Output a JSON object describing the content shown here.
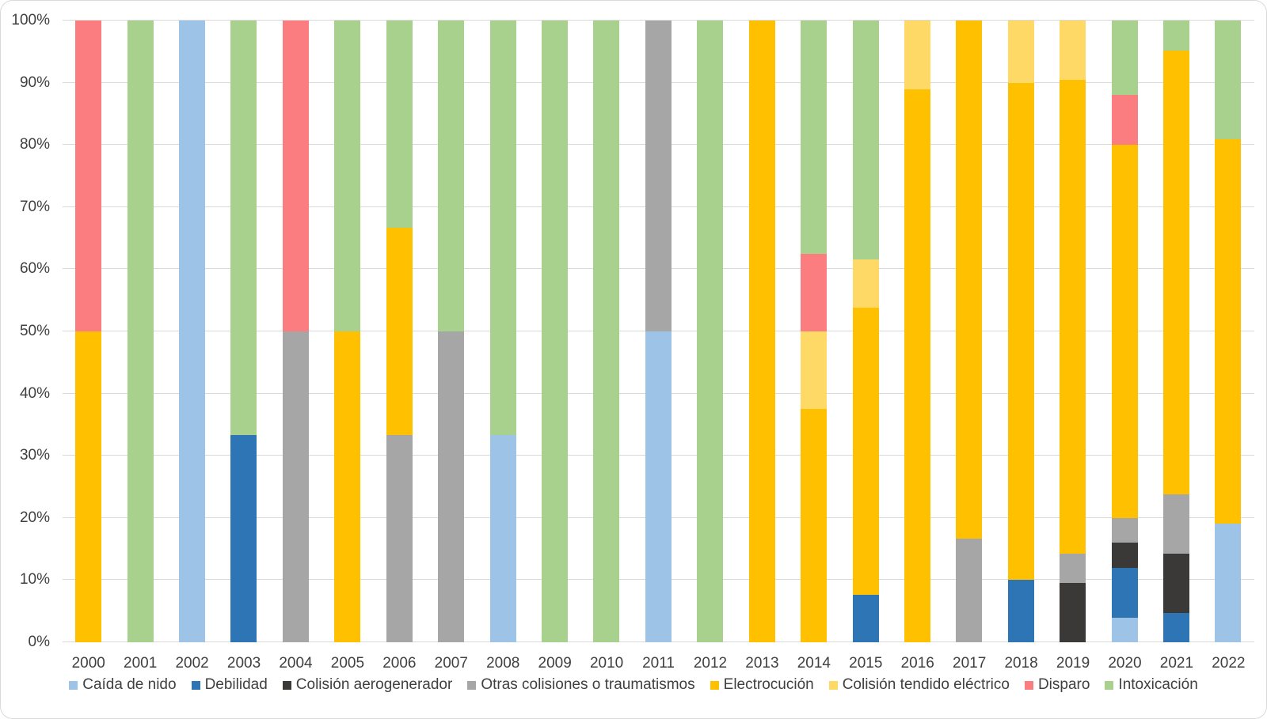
{
  "chart_data": {
    "type": "bar",
    "variant": "stacked-100-percent",
    "title": "",
    "xlabel": "",
    "ylabel": "",
    "ylim": [
      0,
      100
    ],
    "grid": true,
    "legend_position": "bottom",
    "y_ticks": [
      "0%",
      "10%",
      "20%",
      "30%",
      "40%",
      "50%",
      "60%",
      "70%",
      "80%",
      "90%",
      "100%"
    ],
    "categories": [
      "2000",
      "2001",
      "2002",
      "2003",
      "2004",
      "2005",
      "2006",
      "2007",
      "2008",
      "2009",
      "2010",
      "2011",
      "2012",
      "2013",
      "2014",
      "2015",
      "2016",
      "2017",
      "2018",
      "2019",
      "2020",
      "2021",
      "2022"
    ],
    "series": [
      {
        "name": "Caída de nido",
        "color": "#9DC3E6",
        "values": [
          0,
          0,
          100,
          0,
          0,
          0,
          0,
          0,
          33.33,
          0,
          0,
          50,
          0,
          0,
          0,
          0,
          0,
          0,
          0,
          0,
          4,
          0,
          19.05
        ]
      },
      {
        "name": "Debilidad",
        "color": "#2E75B6",
        "values": [
          0,
          0,
          0,
          33.33,
          0,
          0,
          0,
          0,
          0,
          0,
          0,
          0,
          0,
          0,
          0,
          7.69,
          0,
          0,
          10,
          0,
          8,
          4.76,
          0
        ]
      },
      {
        "name": "Colisión aerogenerador",
        "color": "#3B3838",
        "values": [
          0,
          0,
          0,
          0,
          0,
          0,
          0,
          0,
          0,
          0,
          0,
          0,
          0,
          0,
          0,
          0,
          0,
          0,
          0,
          9.52,
          4,
          9.52,
          0
        ]
      },
      {
        "name": "Otras colisiones o traumatismos",
        "color": "#A6A6A6",
        "values": [
          0,
          0,
          0,
          0,
          50,
          0,
          33.33,
          50,
          0,
          0,
          0,
          50,
          0,
          0,
          0,
          0,
          0,
          16.67,
          0,
          4.76,
          4,
          9.52,
          0
        ]
      },
      {
        "name": "Electrocución",
        "color": "#FFC000",
        "values": [
          50,
          0,
          0,
          0,
          0,
          50,
          33.34,
          0,
          0,
          0,
          0,
          0,
          0,
          100,
          37.5,
          46.15,
          88.89,
          83.33,
          80,
          76.19,
          60,
          71.43,
          61.9
        ]
      },
      {
        "name": "Colisión tendido eléctrico",
        "color": "#FFD966",
        "values": [
          0,
          0,
          0,
          0,
          0,
          0,
          0,
          0,
          0,
          0,
          0,
          0,
          0,
          0,
          12.5,
          7.69,
          11.11,
          0,
          10,
          9.53,
          0,
          0,
          0
        ]
      },
      {
        "name": "Disparo",
        "color": "#FB7D80",
        "values": [
          50,
          0,
          0,
          0,
          50,
          0,
          0,
          0,
          0,
          0,
          0,
          0,
          0,
          0,
          12.5,
          0,
          0,
          0,
          0,
          0,
          8,
          0,
          0
        ]
      },
      {
        "name": "Intoxicación",
        "color": "#A9D18E",
        "values": [
          0,
          100,
          0,
          66.67,
          0,
          50,
          33.33,
          50,
          66.67,
          100,
          100,
          0,
          100,
          0,
          37.5,
          38.47,
          0,
          0,
          0,
          0,
          12,
          4.77,
          19.05
        ]
      }
    ],
    "colors": {
      "gridline": "#D9D9D9",
      "axis_text": "#404040",
      "background": "#FFFFFF"
    }
  }
}
